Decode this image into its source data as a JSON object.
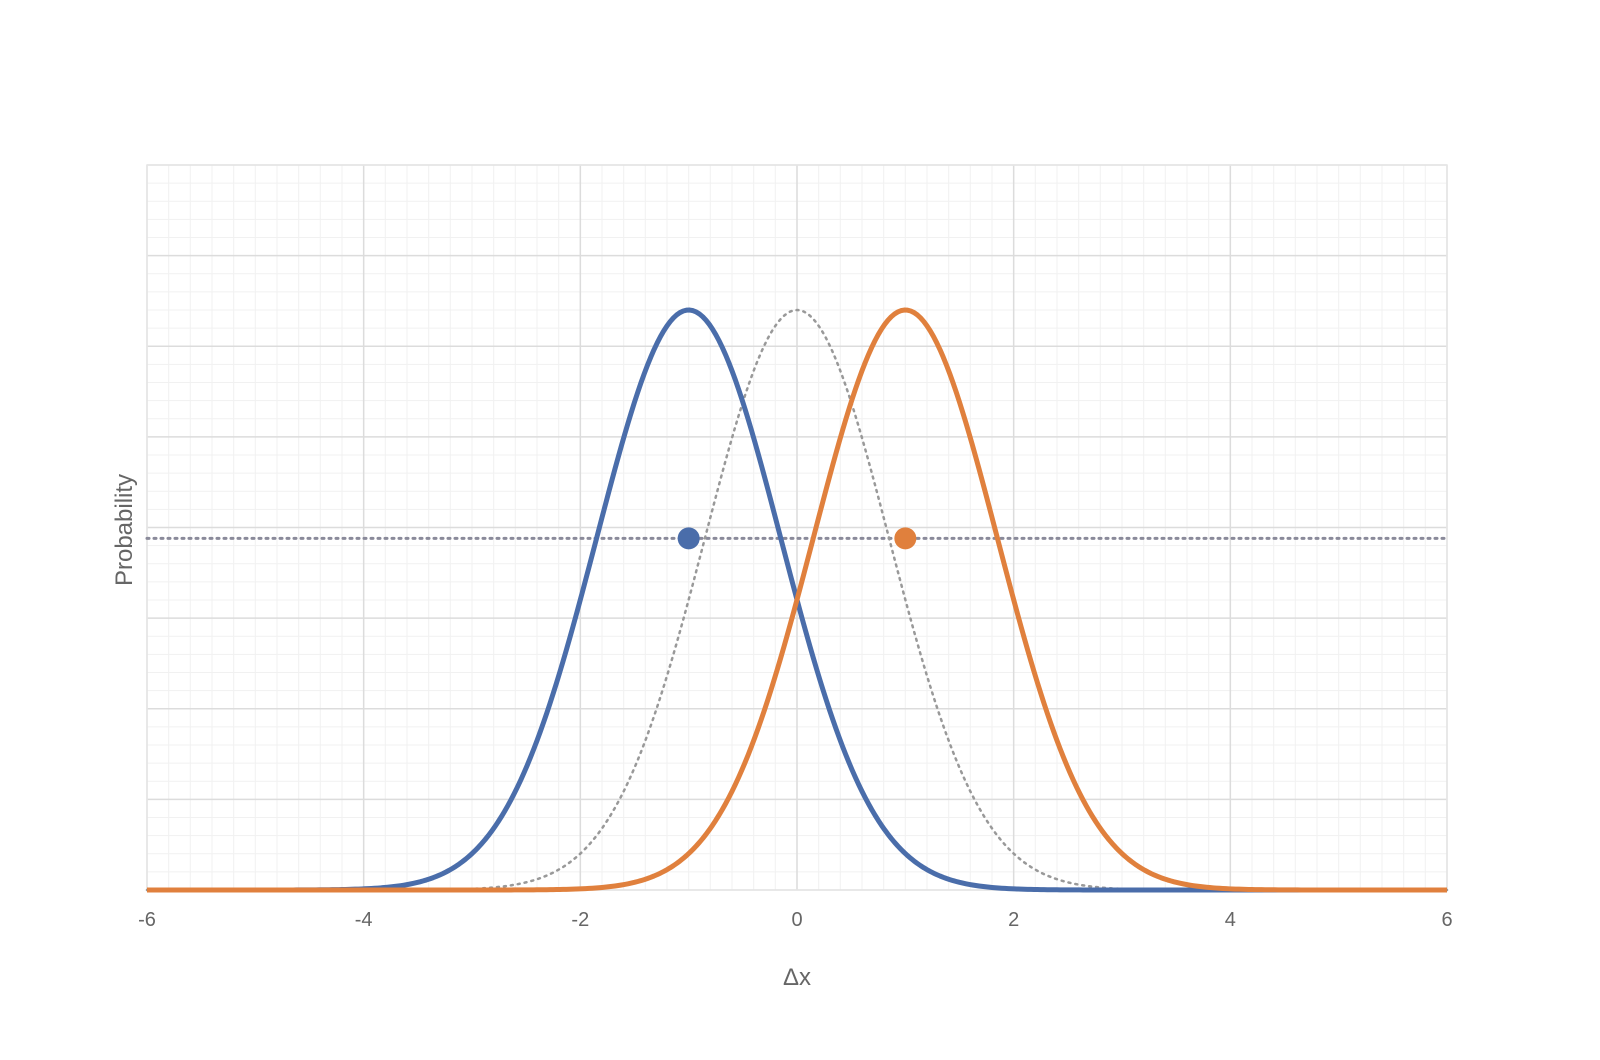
{
  "chart_data": {
    "type": "line",
    "xlabel": "Δx",
    "ylabel": "Probability",
    "xlim": [
      -6,
      6
    ],
    "ylim": [
      0,
      1
    ],
    "x_ticks": [
      -6,
      -4,
      -2,
      0,
      2,
      4,
      6
    ],
    "grid": true,
    "legend": "none",
    "series": [
      {
        "color": "#4A6DAA",
        "style": "solid",
        "distribution": "normal",
        "mean": -1,
        "sd": 0.85,
        "peak": 0.8
      },
      {
        "color": "#E0803D",
        "style": "solid",
        "distribution": "normal",
        "mean": 1,
        "sd": 0.85,
        "peak": 0.8
      },
      {
        "color": "#999999",
        "style": "dotted",
        "distribution": "normal",
        "mean": 0,
        "sd": 0.85,
        "peak": 0.8
      }
    ],
    "threshold": {
      "y": 0.485,
      "color": "#8a8a9a",
      "style": "dotted"
    },
    "markers": [
      {
        "x": -1,
        "y": 0.485,
        "color": "#4A6DAA"
      },
      {
        "x": 1,
        "y": 0.485,
        "color": "#E0803D"
      }
    ]
  }
}
